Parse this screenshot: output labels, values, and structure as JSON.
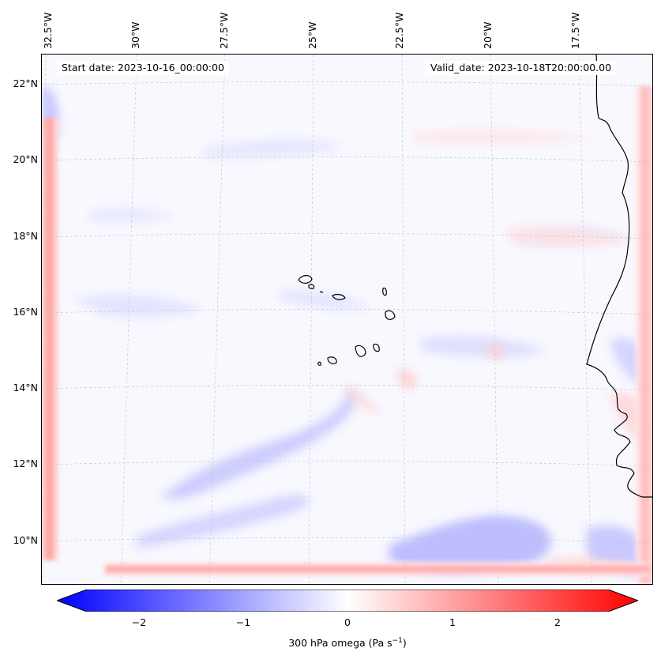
{
  "map": {
    "start_date_text": "Start date: 2023-10-16_00:00:00",
    "valid_date_text": "Valid_date: 2023-10-18T20:00:00.00",
    "lon_labels": [
      "32.5°W",
      "30°W",
      "27.5°W",
      "25°W",
      "22.5°W",
      "20°W",
      "17.5°W"
    ],
    "lat_labels": [
      "22°N",
      "20°N",
      "18°N",
      "16°N",
      "14°N",
      "12°N",
      "10°N"
    ]
  },
  "colorbar": {
    "label": "300 hPa omega (Pa s",
    "label_sup": "−1",
    "label_end": ")",
    "ticks": [
      "−2",
      "−1",
      "0",
      "1",
      "2"
    ],
    "min_color": "#0000ff",
    "mid_color": "#ffffff",
    "max_color": "#ff0000"
  }
}
